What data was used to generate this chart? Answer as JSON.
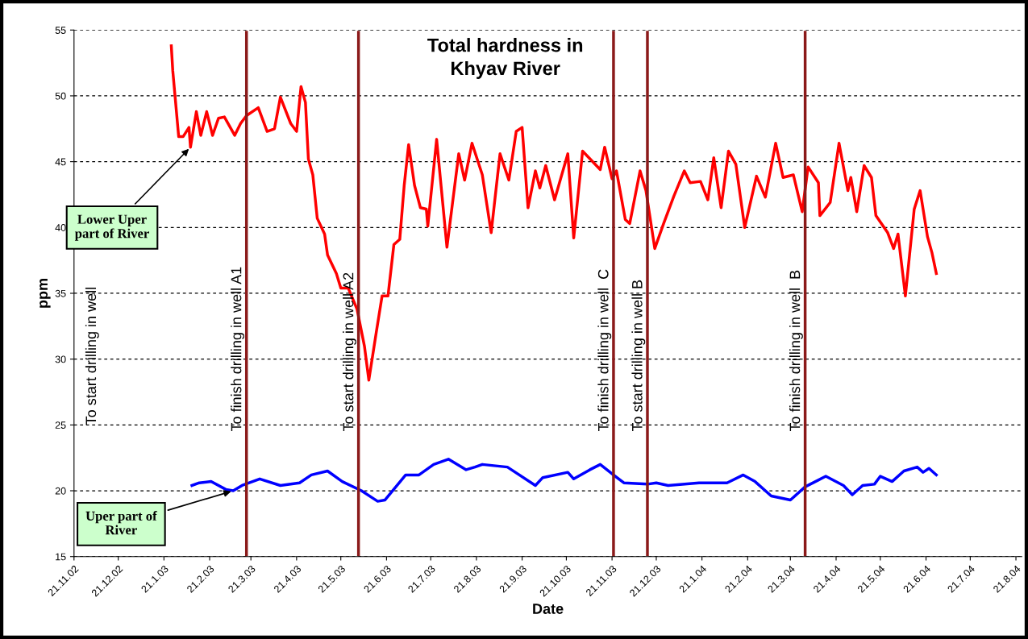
{
  "chart_data": {
    "type": "line",
    "title": "Total hardness in\nKhyav River",
    "xlabel": "Date",
    "ylabel": "ppm",
    "series": [
      {
        "color": "#ff0000",
        "x": [
          "2003-01-26",
          "2003-01-27",
          "2003-01-31",
          "2003-02-03",
          "2003-02-07",
          "2003-02-08",
          "2003-02-12",
          "2003-02-15",
          "2003-02-19",
          "2003-02-23",
          "2003-02-27",
          "2003-03-03",
          "2003-03-10",
          "2003-03-14",
          "2003-03-18",
          "2003-03-26",
          "2003-04-01",
          "2003-04-06",
          "2003-04-10",
          "2003-04-17",
          "2003-04-21",
          "2003-04-24",
          "2003-04-27",
          "2003-04-29",
          "2003-05-02",
          "2003-05-05",
          "2003-05-10",
          "2003-05-12",
          "2003-05-18",
          "2003-05-21",
          "2003-05-26",
          "2003-06-01",
          "2003-06-06",
          "2003-06-09",
          "2003-06-14",
          "2003-06-18",
          "2003-06-22",
          "2003-06-26",
          "2003-06-30",
          "2003-07-03",
          "2003-07-06",
          "2003-07-10",
          "2003-07-14",
          "2003-07-18",
          "2003-07-19",
          "2003-07-25",
          "2003-08-01",
          "2003-08-09",
          "2003-08-13",
          "2003-08-18",
          "2003-08-25",
          "2003-08-31",
          "2003-09-06",
          "2003-09-12",
          "2003-09-17",
          "2003-09-21",
          "2003-09-25",
          "2003-09-30",
          "2003-10-03",
          "2003-10-07",
          "2003-10-13",
          "2003-10-22",
          "2003-10-26",
          "2003-11-01",
          "2003-11-13",
          "2003-11-16",
          "2003-11-21",
          "2003-11-24",
          "2003-11-30",
          "2003-12-03",
          "2003-12-10",
          "2003-12-14",
          "2003-12-20",
          "2003-12-26",
          "2004-01-02",
          "2004-01-09",
          "2004-01-13",
          "2004-01-20",
          "2004-01-25",
          "2004-01-29",
          "2004-02-03",
          "2004-02-08",
          "2004-02-13",
          "2004-02-19",
          "2004-02-27",
          "2004-03-04",
          "2004-03-11",
          "2004-03-16",
          "2004-03-23",
          "2004-03-29",
          "2004-04-02",
          "2004-04-09",
          "2004-04-10",
          "2004-04-17",
          "2004-04-23",
          "2004-04-29",
          "2004-05-01",
          "2004-05-05",
          "2004-05-10",
          "2004-05-15",
          "2004-05-18",
          "2004-05-26",
          "2004-05-30",
          "2004-06-02",
          "2004-06-07",
          "2004-06-13",
          "2004-06-17",
          "2004-06-22",
          "2004-06-25",
          "2004-06-28"
        ],
        "values": [
          53.8,
          51.9,
          46.9,
          46.9,
          47.6,
          46.1,
          48.8,
          47.0,
          48.8,
          47.0,
          48.3,
          48.4,
          47.0,
          47.9,
          48.5,
          49.1,
          47.3,
          47.5,
          49.9,
          47.9,
          47.3,
          50.7,
          49.5,
          45.2,
          44.0,
          40.7,
          39.5,
          37.9,
          36.5,
          35.4,
          35.4,
          33.8,
          31.0,
          28.4,
          32.0,
          34.8,
          34.8,
          38.7,
          39.1,
          43.2,
          46.3,
          43.2,
          41.5,
          41.4,
          40.1,
          46.7,
          38.5,
          45.6,
          43.6,
          46.4,
          44.0,
          39.6,
          45.6,
          43.6,
          47.3,
          47.6,
          41.5,
          44.3,
          43.0,
          44.7,
          42.1,
          45.6,
          39.2,
          45.8,
          44.4,
          46.1,
          43.7,
          44.3,
          40.6,
          40.3,
          44.3,
          42.8,
          38.4,
          40.3,
          42.4,
          44.3,
          43.4,
          43.5,
          42.1,
          45.3,
          41.5,
          45.8,
          44.8,
          40.0,
          43.9,
          42.3,
          46.4,
          43.8,
          44.0,
          41.2,
          44.6,
          43.4,
          40.9,
          41.9,
          46.4,
          42.8,
          43.8,
          41.2,
          44.7,
          43.8,
          40.9,
          39.6,
          38.4,
          39.5,
          34.8,
          41.4,
          42.8,
          39.3,
          38.1,
          36.5
        ]
      },
      {
        "color": "#0000ff",
        "x": [
          "2003-02-09",
          "2003-02-14",
          "2003-02-22",
          "2003-03-04",
          "2003-03-09",
          "2003-03-15",
          "2003-03-27",
          "2003-04-10",
          "2003-04-23",
          "2003-05-01",
          "2003-05-12",
          "2003-05-22",
          "2003-06-04",
          "2003-06-15",
          "2003-06-20",
          "2003-07-04",
          "2003-07-13",
          "2003-07-23",
          "2003-08-02",
          "2003-08-14",
          "2003-08-20",
          "2003-08-25",
          "2003-09-11",
          "2003-09-30",
          "2003-10-05",
          "2003-10-22",
          "2003-10-26",
          "2003-11-06",
          "2003-11-13",
          "2003-11-22",
          "2003-11-29",
          "2003-12-15",
          "2003-12-21",
          "2003-12-29",
          "2004-01-19",
          "2004-02-07",
          "2004-02-18",
          "2004-02-26",
          "2004-03-08",
          "2004-03-21",
          "2004-03-31",
          "2004-04-14",
          "2004-04-26",
          "2004-05-02",
          "2004-05-09",
          "2004-05-17",
          "2004-05-21",
          "2004-05-29",
          "2004-06-06",
          "2004-06-15",
          "2004-06-19",
          "2004-06-23",
          "2004-06-28"
        ],
        "values": [
          20.4,
          20.6,
          20.7,
          20.1,
          20.0,
          20.4,
          20.9,
          20.4,
          20.6,
          21.2,
          21.5,
          20.7,
          20.0,
          19.2,
          19.3,
          21.2,
          21.2,
          22.0,
          22.4,
          21.6,
          21.8,
          22.0,
          21.8,
          20.4,
          21.0,
          21.4,
          20.9,
          21.6,
          22.0,
          21.2,
          20.6,
          20.5,
          20.6,
          20.4,
          20.6,
          20.6,
          21.2,
          20.7,
          19.6,
          19.3,
          20.3,
          21.1,
          20.4,
          19.7,
          20.4,
          20.5,
          21.1,
          20.7,
          21.5,
          21.8,
          21.4,
          21.7,
          21.2
        ]
      }
    ],
    "xlim": [
      "2002-11-21",
      "2004-08-25"
    ],
    "xticks": [
      {
        "value": "2002-11-21",
        "label": "21.11.02"
      },
      {
        "value": "2002-12-21",
        "label": "21.12.02"
      },
      {
        "value": "2003-01-21",
        "label": "21.1.03"
      },
      {
        "value": "2003-02-21",
        "label": "21.2.03"
      },
      {
        "value": "2003-03-21",
        "label": "21.3.03"
      },
      {
        "value": "2003-04-21",
        "label": "21.4.03"
      },
      {
        "value": "2003-05-21",
        "label": "21.5.03"
      },
      {
        "value": "2003-06-21",
        "label": "21.6.03"
      },
      {
        "value": "2003-07-21",
        "label": "21.7.03"
      },
      {
        "value": "2003-08-21",
        "label": "21.8.03"
      },
      {
        "value": "2003-09-21",
        "label": "21.9.03"
      },
      {
        "value": "2003-10-21",
        "label": "21.10.03"
      },
      {
        "value": "2003-11-21",
        "label": "21.11.03"
      },
      {
        "value": "2003-12-21",
        "label": "21.12.03"
      },
      {
        "value": "2004-01-21",
        "label": "21.1.04"
      },
      {
        "value": "2004-02-21",
        "label": "21.2.04"
      },
      {
        "value": "2004-03-21",
        "label": "21.3.04"
      },
      {
        "value": "2004-04-21",
        "label": "21.4.04"
      },
      {
        "value": "2004-05-21",
        "label": "21.5.04"
      },
      {
        "value": "2004-06-21",
        "label": "21.6.04"
      },
      {
        "value": "2004-07-21",
        "label": "21.7.04"
      },
      {
        "value": "2004-08-21",
        "label": "21.8.04"
      }
    ],
    "ylim": [
      15,
      55
    ],
    "yticks": [
      15,
      20,
      25,
      30,
      35,
      40,
      45,
      50,
      55
    ],
    "grid": "y",
    "ref_lines": [
      {
        "axis": "x",
        "value": "2003-03-18",
        "label": "To finish drilling in well A1",
        "color": "#8b1a1a"
      },
      {
        "axis": "x",
        "value": "2003-06-02",
        "label": "To start drilling in well A2",
        "color": "#8b1a1a"
      },
      {
        "axis": "x",
        "value": "2003-11-22",
        "label": "To finish drilling in well  C",
        "color": "#8b1a1a"
      },
      {
        "axis": "x",
        "value": "2003-12-15",
        "label": "To start drilling in well B",
        "color": "#8b1a1a"
      },
      {
        "axis": "x",
        "value": "2004-03-31",
        "label": "To finish drilling in well  B",
        "color": "#8b1a1a"
      }
    ],
    "annotations": [
      "To start drilling in well",
      {
        "text": "Lower Uper\npart of River",
        "x": "2003-02-08",
        "y": 46.1
      },
      {
        "text": "Uper part of\nRiver",
        "x": "2003-03-09",
        "y": 20.0
      }
    ]
  }
}
